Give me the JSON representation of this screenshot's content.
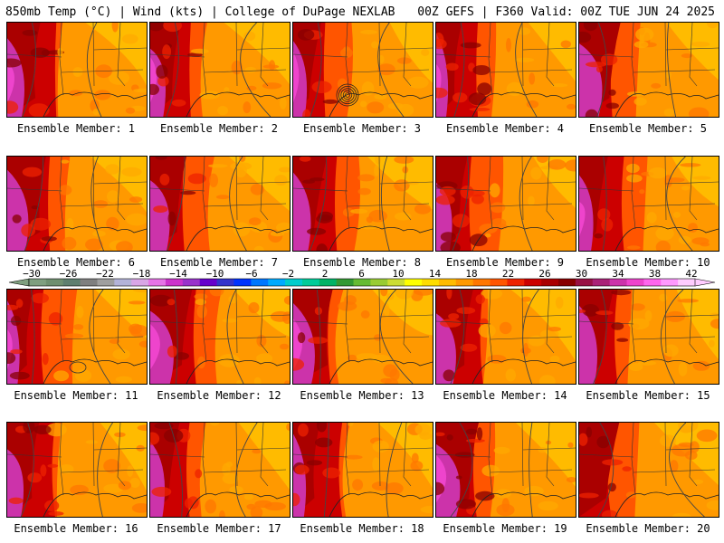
{
  "header": {
    "left": "850mb Temp (°C) | Wind (kts) | College of DuPage NEXLAB",
    "right": "00Z GEFS | F360 Valid: 00Z TUE JUN 24 2025"
  },
  "members": [
    "Ensemble Member: 1",
    "Ensemble Member: 2",
    "Ensemble Member: 3",
    "Ensemble Member: 4",
    "Ensemble Member: 5",
    "Ensemble Member: 6",
    "Ensemble Member: 7",
    "Ensemble Member: 8",
    "Ensemble Member: 9",
    "Ensemble Member: 10",
    "Ensemble Member: 11",
    "Ensemble Member: 12",
    "Ensemble Member: 13",
    "Ensemble Member: 14",
    "Ensemble Member: 15",
    "Ensemble Member: 16",
    "Ensemble Member: 17",
    "Ensemble Member: 18",
    "Ensemble Member: 19",
    "Ensemble Member: 20"
  ],
  "colorbar": {
    "tick_labels": [
      "−30",
      "−26",
      "−22",
      "−18",
      "−14",
      "−10",
      "−6",
      "−2",
      "2",
      "6",
      "10",
      "14",
      "18",
      "22",
      "26",
      "30",
      "34",
      "38",
      "42"
    ],
    "colors": [
      "#7f9f7f",
      "#6f8f6f",
      "#5f7f6f",
      "#7f7f7f",
      "#9f9f9f",
      "#b3b3d9",
      "#d9a6e6",
      "#e673e6",
      "#cc33cc",
      "#9933cc",
      "#6600cc",
      "#3333cc",
      "#0033ff",
      "#0077ff",
      "#00aaff",
      "#00cccc",
      "#00cc99",
      "#00b366",
      "#339933",
      "#66bb33",
      "#99cc33",
      "#ccdd33",
      "#ffff00",
      "#ffdd00",
      "#ffbb00",
      "#ff9900",
      "#ff7700",
      "#ff5500",
      "#ee2200",
      "#cc0000",
      "#aa0000",
      "#880000",
      "#991144",
      "#aa2277",
      "#cc33aa",
      "#ee44cc",
      "#ff66ee",
      "#ff99ff",
      "#ffccff"
    ],
    "unit_note": ""
  }
}
